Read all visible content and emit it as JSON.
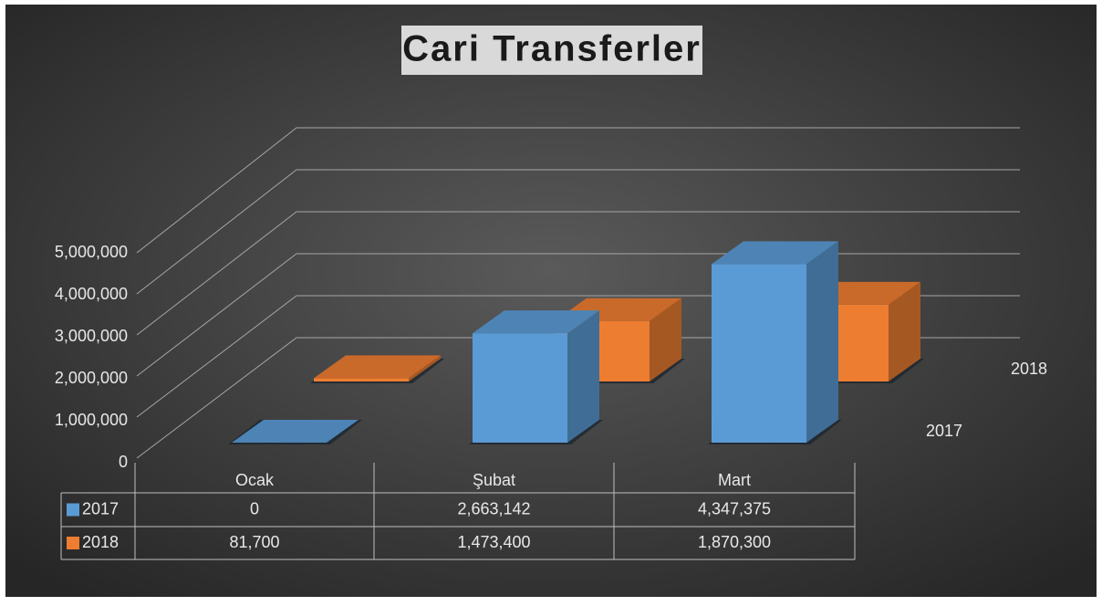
{
  "chart_data": {
    "type": "bar3d",
    "title": "Cari Transferler",
    "categories": [
      "Ocak",
      "Şubat",
      "Mart"
    ],
    "series": [
      {
        "name": "2017",
        "color": "#5b9bd5",
        "values": [
          0,
          2663142,
          4347375
        ],
        "value_labels": [
          "0",
          "2,663,142",
          "4,347,375"
        ]
      },
      {
        "name": "2018",
        "color": "#ed7d31",
        "values": [
          81700,
          1473400,
          1870300
        ],
        "value_labels": [
          "81,700",
          "1,473,400",
          "1,870,300"
        ]
      }
    ],
    "ylim": [
      0,
      5000000
    ],
    "yticks": [
      0,
      {
        "value": 1000000,
        "label": "1,000,000"
      },
      {
        "value": 2000000,
        "label": "2,000,000"
      },
      {
        "value": 3000000,
        "label": "3,000,000"
      },
      {
        "value": 4000000,
        "label": "4,000,000"
      },
      {
        "value": 5000000,
        "label": "5,000,000"
      }
    ],
    "grid": true
  }
}
